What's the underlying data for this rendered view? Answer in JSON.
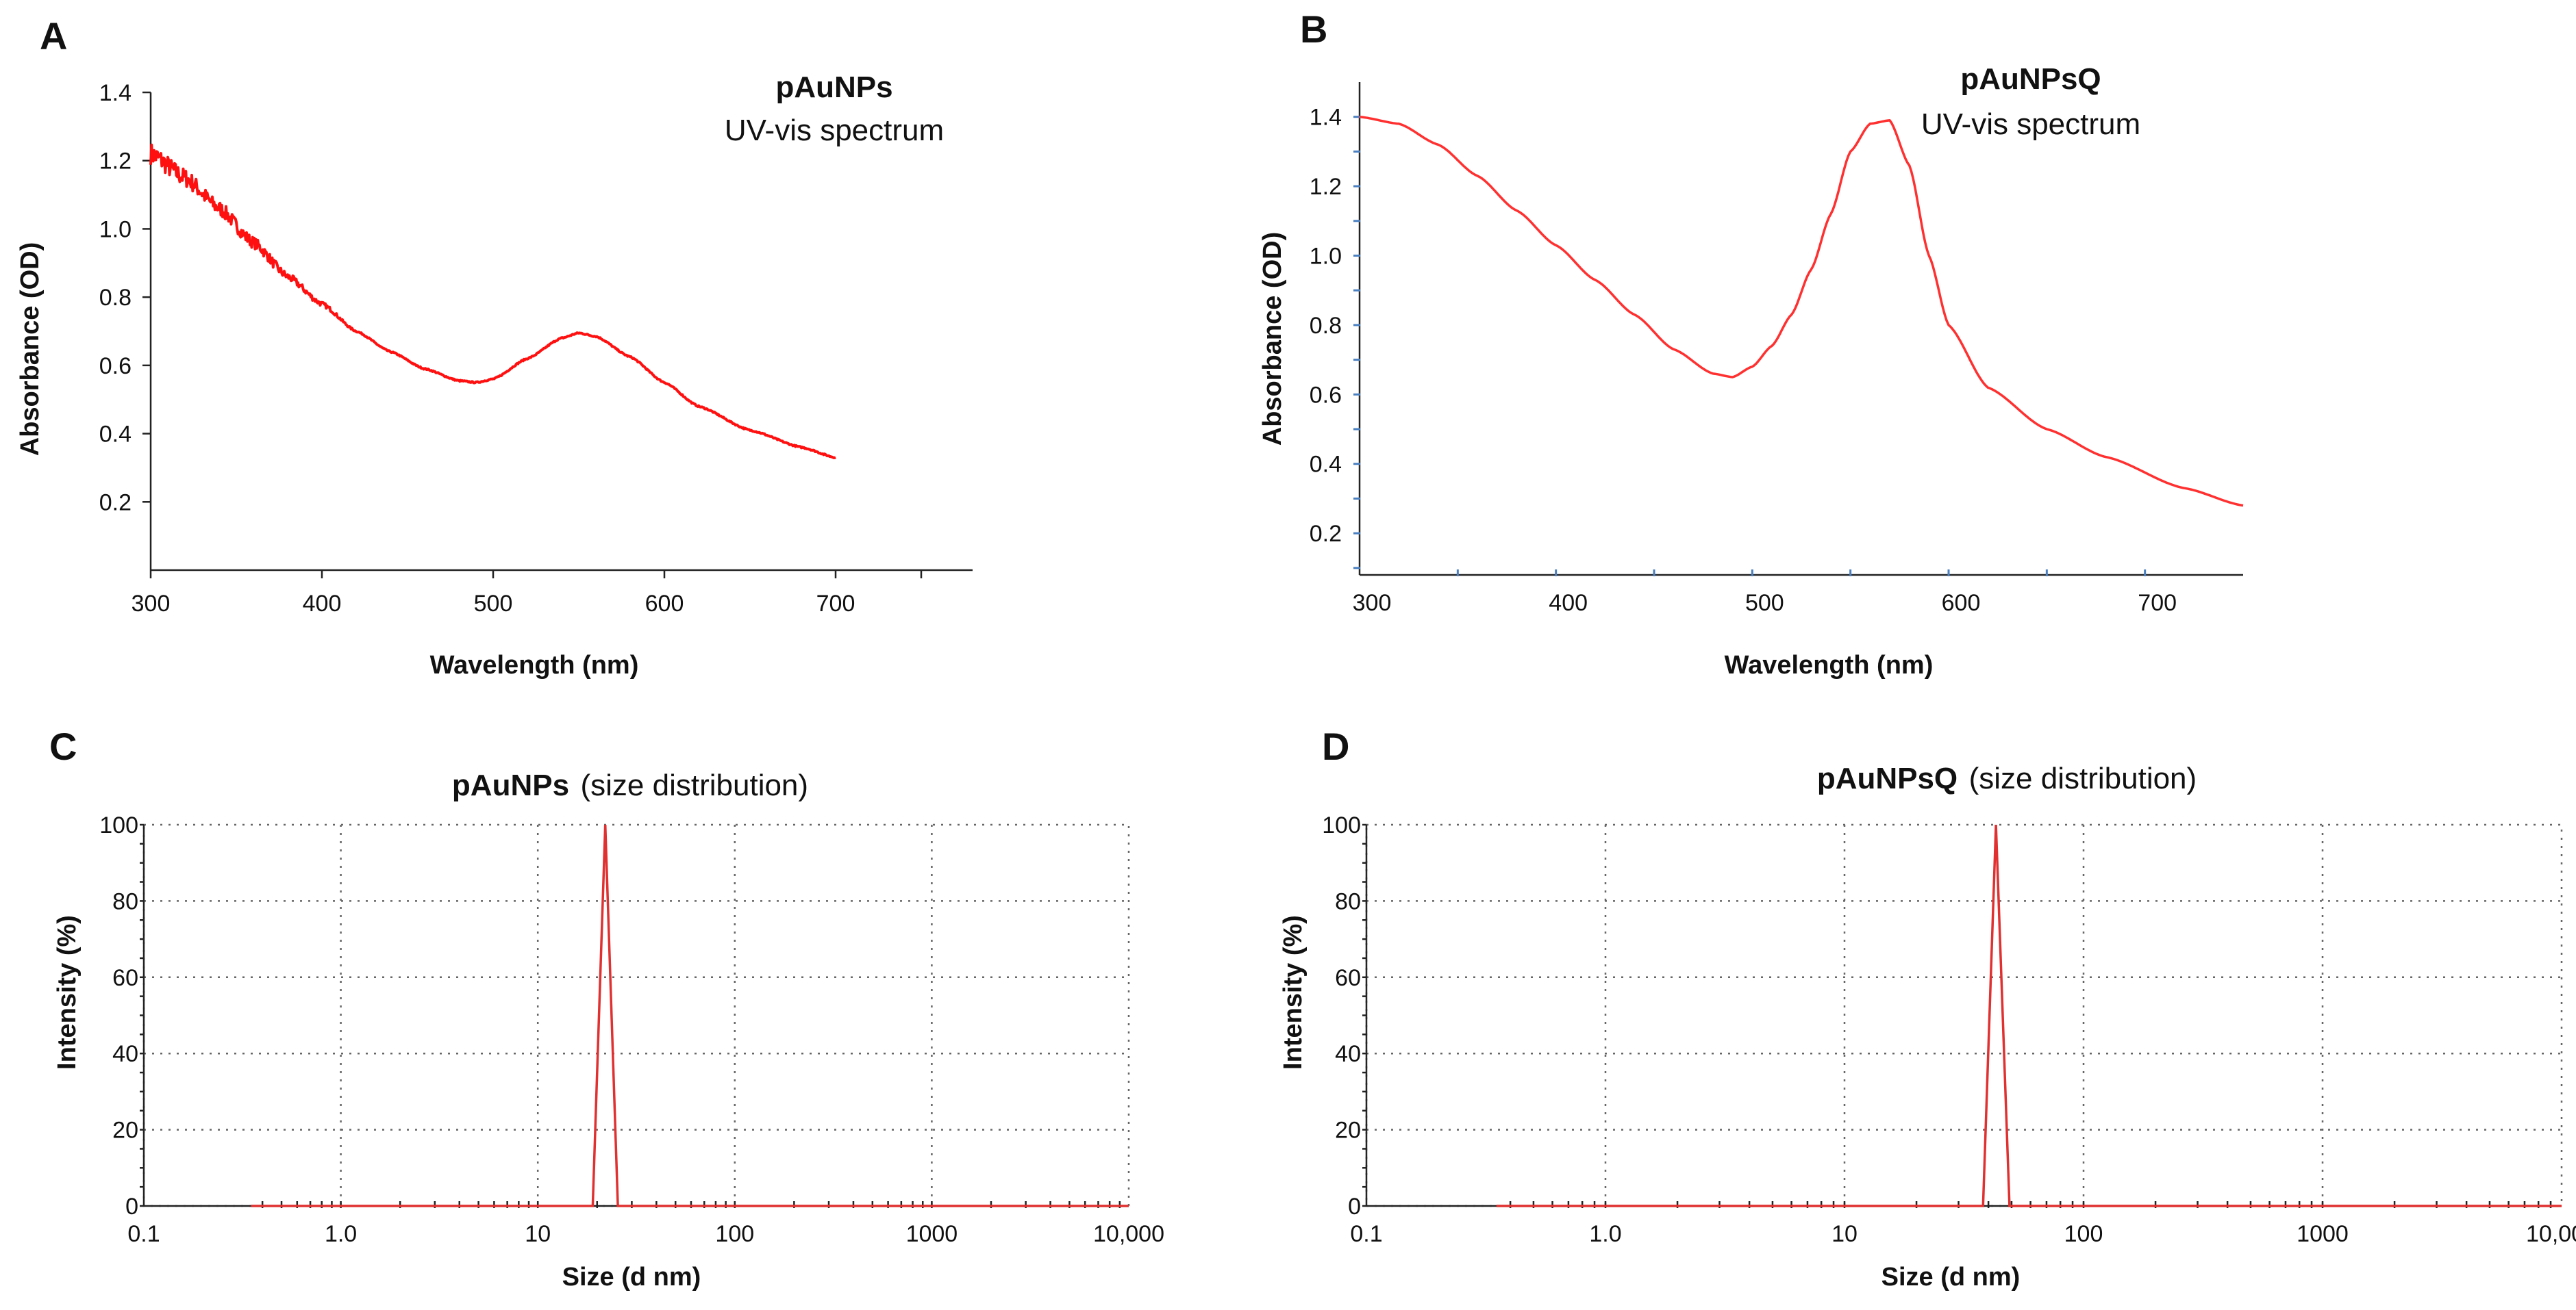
{
  "figure": {
    "panels": {
      "A": {
        "letter": "A"
      },
      "B": {
        "letter": "B"
      },
      "C": {
        "letter": "C"
      },
      "D": {
        "letter": "D"
      }
    }
  },
  "chart_data": [
    {
      "id": "A",
      "type": "line",
      "title_bold": "pAuNPs",
      "subtitle": "UV-vis spectrum",
      "xlabel": "Wavelength (nm)",
      "ylabel": "Absorbance (OD)",
      "xlim": [
        300,
        780
      ],
      "ylim": [
        0,
        1.4
      ],
      "xticks": [
        300,
        400,
        500,
        600,
        700
      ],
      "xtick_labels": [
        "300",
        "400",
        "500",
        "600",
        "700"
      ],
      "yticks": [
        0.2,
        0.4,
        0.6,
        0.8,
        1.0,
        1.2,
        1.4
      ],
      "ytick_labels": [
        "0.2",
        "0.4",
        "0.6",
        "0.8",
        "1.0",
        "1.2",
        "1.4"
      ],
      "line_color": "#ff1010",
      "noisy": true,
      "x": [
        300,
        320,
        340,
        360,
        380,
        400,
        420,
        440,
        460,
        480,
        490,
        500,
        520,
        540,
        550,
        560,
        580,
        600,
        620,
        650,
        680,
        700
      ],
      "y": [
        1.22,
        1.15,
        1.06,
        0.96,
        0.86,
        0.78,
        0.7,
        0.64,
        0.59,
        0.555,
        0.55,
        0.56,
        0.62,
        0.68,
        0.695,
        0.685,
        0.625,
        0.55,
        0.48,
        0.41,
        0.36,
        0.33
      ]
    },
    {
      "id": "B",
      "type": "line",
      "title_bold": "pAuNPsQ",
      "subtitle": "UV-vis spectrum",
      "xlabel": "Wavelength (nm)",
      "ylabel": "Absorbance (OD)",
      "xlim": [
        300,
        750
      ],
      "ylim": [
        0.08,
        1.5
      ],
      "xticks": [
        300,
        400,
        500,
        600,
        700
      ],
      "xtick_labels": [
        "300",
        "400",
        "500",
        "600",
        "700"
      ],
      "yticks": [
        0.2,
        0.4,
        0.6,
        0.8,
        1.0,
        1.2,
        1.4
      ],
      "ytick_labels": [
        "0.2",
        "0.4",
        "0.6",
        "0.8",
        "1.0",
        "1.2",
        "1.4"
      ],
      "line_color": "#ff3030",
      "noisy": false,
      "x": [
        300,
        320,
        340,
        360,
        380,
        400,
        420,
        440,
        460,
        480,
        490,
        500,
        510,
        520,
        530,
        540,
        550,
        560,
        570,
        580,
        590,
        600,
        620,
        650,
        680,
        720,
        750
      ],
      "y": [
        1.4,
        1.38,
        1.32,
        1.23,
        1.13,
        1.03,
        0.93,
        0.83,
        0.73,
        0.66,
        0.65,
        0.68,
        0.74,
        0.83,
        0.96,
        1.12,
        1.3,
        1.38,
        1.39,
        1.26,
        1.0,
        0.8,
        0.62,
        0.5,
        0.42,
        0.33,
        0.28
      ]
    },
    {
      "id": "C",
      "type": "line",
      "title_bold": "pAuNPs",
      "title_rest": "(size distribution)",
      "xlabel": "Size (d nm)",
      "ylabel": "Intensity (%)",
      "xscale": "log",
      "xlim": [
        0.1,
        10000
      ],
      "ylim": [
        0,
        100
      ],
      "xticks": [
        0.1,
        1,
        10,
        100,
        1000,
        10000
      ],
      "xtick_labels": [
        "0.1",
        "1.0",
        "10",
        "100",
        "1000",
        "10,000"
      ],
      "yticks": [
        0,
        20,
        40,
        60,
        80,
        100
      ],
      "ytick_labels": [
        "0",
        "20",
        "40",
        "60",
        "80",
        "100"
      ],
      "line_color": "#e03030",
      "x": [
        0.35,
        19.0,
        22.0,
        25.5,
        10000
      ],
      "y": [
        0,
        0,
        100,
        0,
        0
      ]
    },
    {
      "id": "D",
      "type": "line",
      "title_bold": "pAuNPsQ",
      "title_rest": "(size distribution)",
      "xlabel": "Size (d nm)",
      "ylabel": "Intensity (%)",
      "xscale": "log",
      "xlim": [
        0.1,
        10000
      ],
      "ylim": [
        0,
        100
      ],
      "xticks": [
        0.1,
        1,
        10,
        100,
        1000,
        10000
      ],
      "xtick_labels": [
        "0.1",
        "1.0",
        "10",
        "100",
        "1000",
        "10,000"
      ],
      "yticks": [
        0,
        20,
        40,
        60,
        80,
        100
      ],
      "ytick_labels": [
        "0",
        "20",
        "40",
        "60",
        "80",
        "100"
      ],
      "line_color": "#e03030",
      "x": [
        0.35,
        38.0,
        43.0,
        49.0,
        10000
      ],
      "y": [
        0,
        0,
        100,
        0,
        0
      ]
    }
  ]
}
